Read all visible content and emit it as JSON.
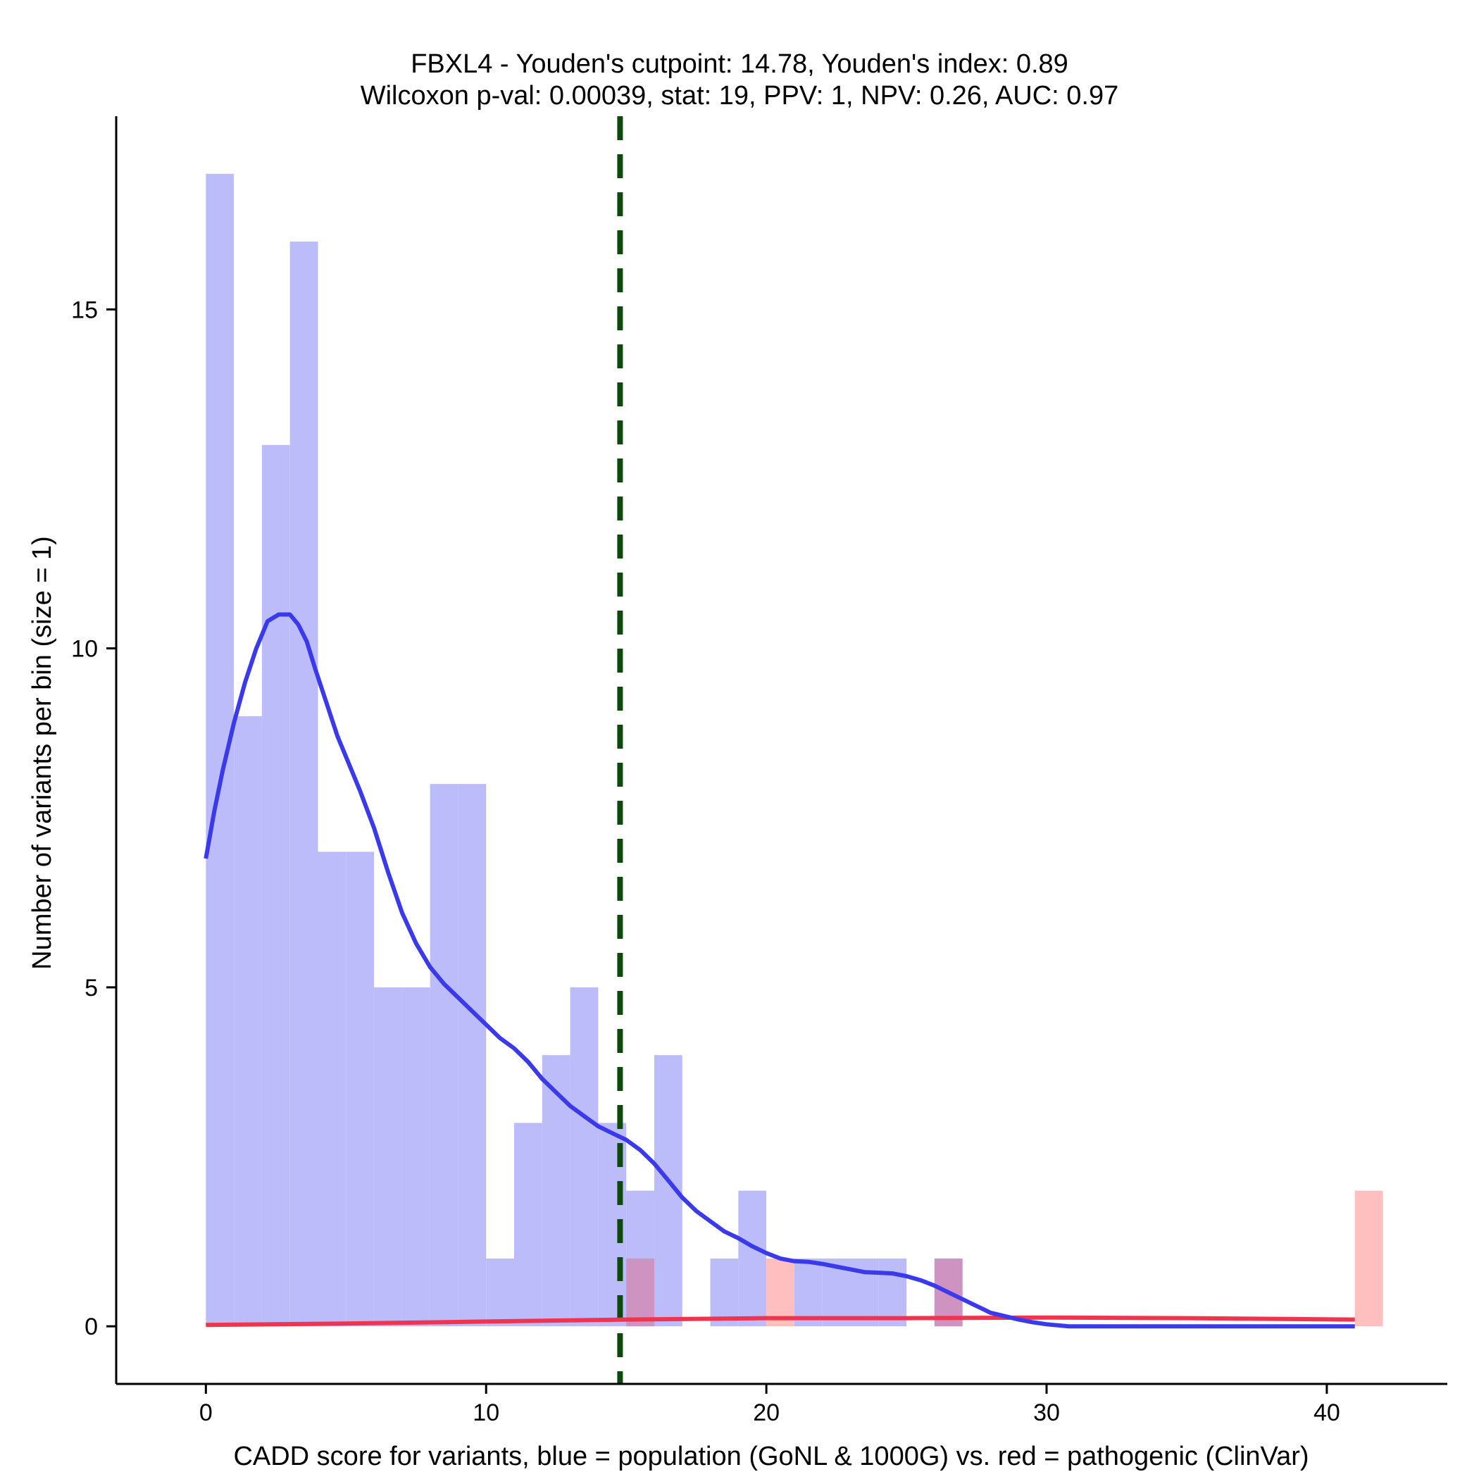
{
  "chart_data": {
    "type": "bar",
    "title_line1": "FBXL4 - Youden's cutpoint: 14.78, Youden's index: 0.89",
    "title_line2": "Wilcoxon p-val: 0.00039, stat: 19, PPV: 1, NPV: 0.26, AUC: 0.97",
    "xlabel": "CADD score for variants, blue = population (GoNL & 1000G) vs. red = pathogenic (ClinVar)",
    "ylabel": "Number of variants per bin (size = 1)",
    "xlim": [
      -3.2,
      44.3
    ],
    "ylim": [
      -0.85,
      17.85
    ],
    "x_ticks": [
      0,
      10,
      20,
      30,
      40
    ],
    "y_ticks": [
      0,
      5,
      10,
      15
    ],
    "bin_width": 1,
    "cutpoint": 14.78,
    "colors": {
      "population_bar": "#bcbcfb",
      "pathogenic_bar": "#ffbfbf",
      "overlap_bar": "#cf93c2",
      "population_density": "#3a3aec",
      "pathogenic_density": "#f0344e",
      "cutpoint_line": "#0b4a0b",
      "axis": "#000000"
    },
    "series": [
      {
        "name": "population",
        "bins": [
          {
            "x0": 0,
            "count": 17
          },
          {
            "x0": 1,
            "count": 9
          },
          {
            "x0": 2,
            "count": 13
          },
          {
            "x0": 3,
            "count": 16
          },
          {
            "x0": 4,
            "count": 7
          },
          {
            "x0": 5,
            "count": 7
          },
          {
            "x0": 6,
            "count": 5
          },
          {
            "x0": 7,
            "count": 5
          },
          {
            "x0": 8,
            "count": 8
          },
          {
            "x0": 9,
            "count": 8
          },
          {
            "x0": 10,
            "count": 1
          },
          {
            "x0": 11,
            "count": 3
          },
          {
            "x0": 12,
            "count": 4
          },
          {
            "x0": 13,
            "count": 5
          },
          {
            "x0": 14,
            "count": 3
          },
          {
            "x0": 15,
            "count": 2
          },
          {
            "x0": 16,
            "count": 4
          },
          {
            "x0": 18,
            "count": 1
          },
          {
            "x0": 19,
            "count": 2
          },
          {
            "x0": 21,
            "count": 1
          },
          {
            "x0": 22,
            "count": 1
          },
          {
            "x0": 23,
            "count": 1
          },
          {
            "x0": 24,
            "count": 1
          },
          {
            "x0": 26,
            "count": 1
          }
        ],
        "density": {
          "x": [
            0,
            0.3,
            0.6,
            1,
            1.4,
            1.8,
            2.2,
            2.6,
            3,
            3.3,
            3.6,
            3.9,
            4.3,
            4.7,
            5,
            5.5,
            6,
            6.5,
            7,
            7.5,
            8,
            8.5,
            9,
            9.5,
            10,
            10.5,
            11,
            11.5,
            12,
            12.5,
            13,
            13.5,
            14,
            14.5,
            15,
            15.5,
            16,
            16.5,
            17,
            17.5,
            18,
            18.5,
            19,
            19.5,
            20,
            20.5,
            21,
            21.5,
            22,
            22.5,
            23,
            23.5,
            24,
            24.5,
            25,
            25.5,
            26,
            26.5,
            27,
            27.5,
            28,
            28.5,
            29,
            29.5,
            30,
            30.8,
            32,
            34,
            36,
            38,
            40,
            41
          ],
          "y": [
            6.9,
            7.6,
            8.2,
            8.9,
            9.5,
            10,
            10.4,
            10.5,
            10.5,
            10.35,
            10.1,
            9.7,
            9.2,
            8.7,
            8.4,
            7.9,
            7.35,
            6.7,
            6.1,
            5.65,
            5.3,
            5.05,
            4.85,
            4.65,
            4.45,
            4.25,
            4.1,
            3.9,
            3.65,
            3.45,
            3.25,
            3.1,
            2.95,
            2.85,
            2.75,
            2.6,
            2.4,
            2.15,
            1.9,
            1.7,
            1.55,
            1.4,
            1.3,
            1.18,
            1.08,
            1.0,
            0.96,
            0.95,
            0.92,
            0.88,
            0.84,
            0.8,
            0.79,
            0.78,
            0.74,
            0.68,
            0.6,
            0.5,
            0.4,
            0.3,
            0.2,
            0.15,
            0.1,
            0.06,
            0.03,
            0.0,
            0.0,
            0.0,
            0.0,
            0.0,
            0.0,
            0.0
          ]
        }
      },
      {
        "name": "pathogenic",
        "bins": [
          {
            "x0": 15,
            "count": 1
          },
          {
            "x0": 20,
            "count": 1
          },
          {
            "x0": 26,
            "count": 1
          },
          {
            "x0": 41,
            "count": 2
          }
        ],
        "density": {
          "x": [
            0,
            5,
            10,
            15,
            20,
            25,
            30,
            35,
            41
          ],
          "y": [
            0.02,
            0.04,
            0.07,
            0.1,
            0.12,
            0.12,
            0.13,
            0.12,
            0.1
          ]
        }
      }
    ]
  }
}
